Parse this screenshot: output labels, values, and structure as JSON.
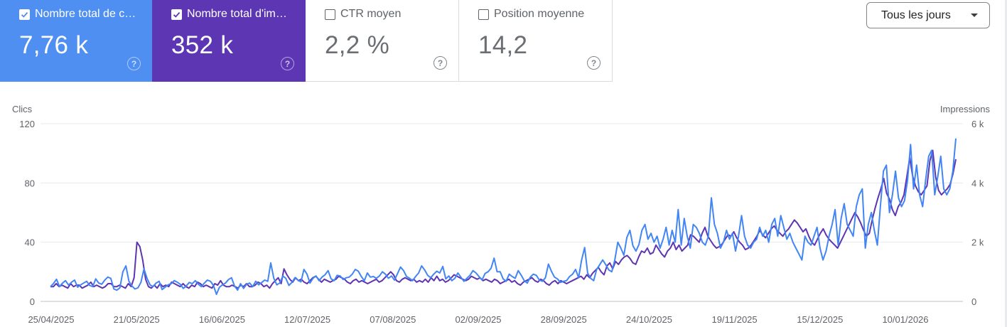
{
  "metrics": [
    {
      "label": "Nombre total de c…",
      "value": "7,76 k",
      "checked": true
    },
    {
      "label": "Nombre total d'im…",
      "value": "352 k",
      "checked": true
    },
    {
      "label": "CTR moyen",
      "value": "2,2 %",
      "checked": false
    },
    {
      "label": "Position moyenne",
      "value": "14,2",
      "checked": false
    }
  ],
  "help_glyph": "?",
  "range_button": {
    "label": "Tous les jours"
  },
  "chart_data": {
    "type": "line",
    "y_left": {
      "label": "Clics",
      "ticks": [
        "120",
        "80",
        "40",
        "0"
      ],
      "range": [
        0,
        120
      ]
    },
    "y_right": {
      "label": "Impressions",
      "ticks": [
        "6 k",
        "4 k",
        "2 k",
        "0"
      ],
      "range": [
        0,
        6000
      ]
    },
    "x_ticks": [
      "25/04/2025",
      "21/05/2025",
      "16/06/2025",
      "12/07/2025",
      "07/08/2025",
      "02/09/2025",
      "28/09/2025",
      "24/10/2025",
      "19/11/2025",
      "15/12/2025",
      "10/01/2026"
    ],
    "grid": true,
    "series": [
      {
        "color": "#5e35b1",
        "axis": "left",
        "values": [
          10,
          10,
          12,
          10,
          11,
          10,
          9,
          12,
          10,
          11,
          11,
          9,
          10,
          11,
          13,
          10,
          11,
          10,
          9,
          10,
          12,
          12,
          10,
          10,
          11,
          10,
          9,
          12,
          10,
          16,
          40,
          37,
          28,
          15,
          10,
          9,
          11,
          9,
          12,
          10,
          11,
          10,
          13,
          12,
          11,
          10,
          12,
          10,
          9,
          11,
          10,
          13,
          12,
          10,
          11,
          10,
          9,
          12,
          11,
          14,
          11,
          10,
          10,
          11,
          10,
          9,
          11,
          10,
          12,
          10,
          10,
          11,
          13,
          12,
          10,
          11,
          9,
          12,
          14,
          16,
          12,
          22,
          18,
          15,
          13,
          16,
          14,
          15,
          13,
          12,
          14,
          16,
          17,
          15,
          13,
          15,
          14,
          13,
          14,
          15,
          17,
          16,
          15,
          13,
          12,
          14,
          15,
          13,
          14,
          13,
          12,
          13,
          14,
          15,
          13,
          14,
          16,
          18,
          20,
          18,
          14,
          13,
          15,
          16,
          15,
          14,
          15,
          13,
          14,
          13,
          15,
          13,
          16,
          14,
          17,
          14,
          15,
          13,
          14,
          16,
          18,
          17,
          16,
          15,
          14,
          15,
          17,
          16,
          15,
          16,
          14,
          15,
          14,
          13,
          15,
          14,
          12,
          13,
          14,
          15,
          13,
          14,
          12,
          11,
          13,
          14,
          15,
          16,
          14,
          13,
          15,
          14,
          12,
          11,
          13,
          14,
          12,
          14,
          13,
          12,
          13,
          14,
          15,
          16,
          17,
          15,
          18,
          16,
          19,
          21,
          23,
          20,
          18,
          24,
          26,
          22,
          27,
          25,
          28,
          30,
          31,
          29,
          26,
          25,
          30,
          34,
          33,
          36,
          32,
          33,
          38,
          35,
          32,
          30,
          34,
          36,
          40,
          35,
          38,
          34,
          36,
          38,
          45,
          44,
          42,
          40,
          46,
          50,
          44,
          41,
          38,
          36,
          37,
          39,
          42,
          45,
          44,
          47,
          43,
          40,
          38,
          35,
          36,
          38,
          41,
          44,
          48,
          45,
          43,
          46,
          49,
          51,
          48,
          46,
          44,
          47,
          49,
          52,
          55,
          53,
          50,
          47,
          49,
          44,
          40,
          38,
          42,
          46,
          49,
          45,
          42,
          40,
          38,
          36,
          40,
          44,
          48,
          52,
          56,
          60,
          57,
          53,
          48,
          44,
          46,
          55,
          63,
          70,
          76,
          83,
          73,
          69,
          62,
          58,
          64,
          67,
          72,
          84,
          97,
          85,
          78,
          74,
          72,
          75,
          78,
          95,
          102,
          84,
          75,
          72,
          74,
          76,
          79,
          86,
          96
        ]
      },
      {
        "color": "#4285f4",
        "axis": "right",
        "values": [
          500,
          600,
          750,
          500,
          620,
          700,
          550,
          650,
          720,
          480,
          560,
          620,
          680,
          540,
          500,
          760,
          620,
          580,
          720,
          820,
          780,
          420,
          380,
          460,
          1000,
          1200,
          680,
          520,
          420,
          460,
          650,
          1100,
          780,
          560,
          500,
          620,
          680,
          400,
          480,
          560,
          600,
          700,
          650,
          580,
          440,
          520,
          640,
          600,
          700,
          580,
          500,
          620,
          720,
          680,
          540,
          240,
          480,
          560,
          620,
          740,
          800,
          520,
          380,
          600,
          440,
          580,
          620,
          500,
          680,
          560,
          640,
          720,
          680,
          1300,
          780,
          560,
          620,
          860,
          780,
          540,
          640,
          800,
          720,
          660,
          1080,
          920,
          620,
          780,
          860,
          700,
          820,
          900,
          1040,
          760,
          700,
          880,
          860,
          740,
          800,
          820,
          920,
          1080,
          1020,
          840,
          700,
          960,
          820,
          840,
          780,
          860,
          1000,
          920,
          780,
          860,
          720,
          940,
          1160,
          1040,
          840,
          780,
          700,
          840,
          960,
          1200,
          1060,
          880,
          800,
          920,
          1020,
          960,
          1180,
          760,
          860,
          700,
          780,
          960,
          820,
          680,
          780,
          880,
          1040,
          960,
          840,
          720,
          940,
          1000,
          1120,
          1460,
          1000,
          1000,
          760,
          680,
          920,
          840,
          780,
          1040,
          880,
          700,
          620,
          820,
          920,
          880,
          720,
          680,
          800,
          1260,
          1020,
          820,
          760,
          640,
          680,
          700,
          840,
          920,
          1080,
          800,
          1400,
          1820,
          960,
          780,
          700,
          1080,
          1240,
          1400,
          1240,
          1060,
          1000,
          1400,
          2000,
          1800,
          1560,
          2160,
          2400,
          1880,
          1700,
          1920,
          2400,
          2600,
          2100,
          2300,
          2000,
          2200,
          1800,
          2100,
          2500,
          1900,
          2400,
          2000,
          3100,
          1900,
          2800,
          2200,
          1800,
          2600,
          2500,
          2300,
          2000,
          1900,
          2200,
          3500,
          2600,
          2300,
          1800,
          2000,
          2400,
          2100,
          2300,
          1700,
          2200,
          2900,
          2200,
          1900,
          1800,
          2000,
          2100,
          2500,
          2200,
          2400,
          2000,
          2600,
          2800,
          2200,
          2900,
          2500,
          2100,
          2300,
          2000,
          1800,
          1600,
          1400,
          2200,
          2000,
          1900,
          2200,
          2500,
          1800,
          1400,
          1700,
          2200,
          2600,
          3100,
          1900,
          2800,
          3300,
          2600,
          2400,
          2200,
          3200,
          3600,
          3800,
          1800,
          2600,
          3000,
          2400,
          1900,
          3200,
          4400,
          4600,
          3000,
          3600,
          4400,
          3500,
          3200,
          3400,
          4100,
          5300,
          3800,
          4600,
          3600,
          3200,
          4100,
          4900,
          5100,
          3600,
          4200,
          4900,
          3800,
          3600,
          3800,
          4400,
          5500
        ]
      }
    ]
  }
}
